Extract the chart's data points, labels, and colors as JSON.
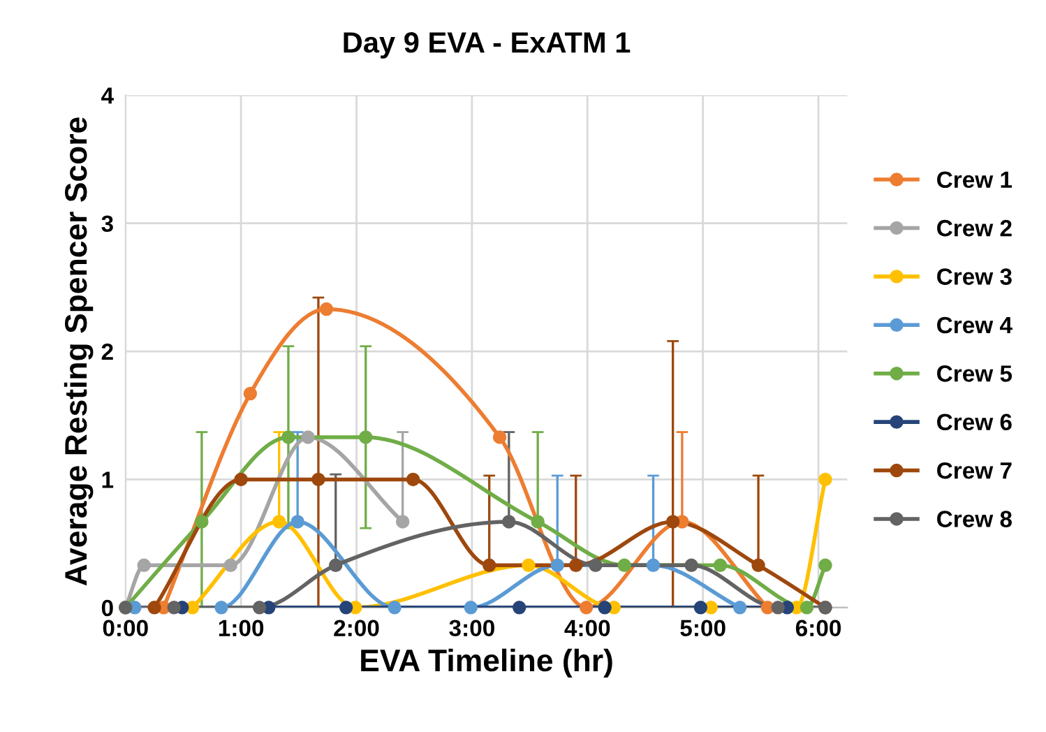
{
  "chart_data": {
    "type": "line",
    "title": "Day 9 EVA - ExATM 1",
    "xlabel": "EVA Timeline (hr)",
    "ylabel": "Average Resting Spencer Score",
    "xlim": [
      0,
      6.25
    ],
    "xticks": [
      {
        "value": 0,
        "label": "0:00"
      },
      {
        "value": 1,
        "label": "1:00"
      },
      {
        "value": 2,
        "label": "2:00"
      },
      {
        "value": 3,
        "label": "3:00"
      },
      {
        "value": 4,
        "label": "4:00"
      },
      {
        "value": 5,
        "label": "5:00"
      },
      {
        "value": 6,
        "label": "6:00"
      }
    ],
    "ylim": [
      0,
      4
    ],
    "yticks": [
      0,
      1,
      2,
      3,
      4
    ],
    "grid": true,
    "legend": "right",
    "marker": "circle",
    "line_style": "solid",
    "series": [
      {
        "name": "Crew 1",
        "color": "#ed7d31",
        "x": [
          0.33,
          1.08,
          1.74,
          3.24,
          3.99,
          4.82,
          5.56
        ],
        "values": [
          0,
          1.67,
          2.33,
          1.33,
          0,
          0.67,
          0
        ],
        "errors": [
          null,
          null,
          null,
          null,
          null,
          [
            0.67,
            1.37
          ],
          null
        ]
      },
      {
        "name": "Crew 2",
        "color": "#a5a5a5",
        "x": [
          0,
          0.16,
          0.91,
          1.58,
          2.4
        ],
        "values": [
          0,
          0.33,
          0.33,
          1.33,
          0.67
        ],
        "errors": [
          null,
          null,
          null,
          null,
          [
            0.67,
            1.37
          ]
        ]
      },
      {
        "name": "Crew 3",
        "color": "#ffc000",
        "x": [
          0.58,
          1.33,
          1.99,
          3.49,
          4.23,
          5.07,
          5.81,
          6.06
        ],
        "values": [
          0,
          0.67,
          0,
          0.33,
          0,
          0,
          0,
          1
        ],
        "errors": [
          null,
          [
            0.67,
            1.37
          ],
          null,
          null,
          null,
          null,
          null,
          null
        ]
      },
      {
        "name": "Crew 4",
        "color": "#5b9bd5",
        "x": [
          0.08,
          0.83,
          1.49,
          2.33,
          2.99,
          3.74,
          4.57,
          5.32
        ],
        "values": [
          0,
          0,
          0.67,
          0,
          0,
          0.33,
          0.33,
          0
        ],
        "errors": [
          null,
          null,
          [
            0.67,
            1.37
          ],
          null,
          null,
          [
            0.33,
            1.03
          ],
          [
            0.33,
            1.03
          ],
          null
        ]
      },
      {
        "name": "Crew 5",
        "color": "#70ad47",
        "x": [
          0,
          0.66,
          1.41,
          2.08,
          3.57,
          4.32,
          5.15,
          5.9,
          6.06
        ],
        "values": [
          0,
          0.67,
          1.33,
          1.33,
          0.67,
          0.33,
          0.33,
          0,
          0.33
        ],
        "errors": [
          null,
          [
            0,
            1.37
          ],
          0.71,
          0.71,
          [
            0.67,
            1.37
          ],
          null,
          null,
          null,
          null
        ]
      },
      {
        "name": "Crew 6",
        "color": "#264478",
        "x": [
          0.49,
          1.24,
          1.91,
          3.41,
          4.15,
          4.98,
          5.73
        ],
        "values": [
          0,
          0,
          0,
          0,
          0,
          0,
          0
        ]
      },
      {
        "name": "Crew 7",
        "color": "#9e480e",
        "x": [
          0.25,
          1.0,
          1.67,
          2.49,
          3.15,
          3.9,
          4.74,
          5.48,
          6.06
        ],
        "values": [
          0,
          1,
          1,
          1,
          0.33,
          0.33,
          0.67,
          0.33,
          0
        ],
        "errors": [
          null,
          null,
          [
            0,
            2.42
          ],
          null,
          [
            0.33,
            1.03
          ],
          [
            0.33,
            1.03
          ],
          [
            0,
            2.08
          ],
          [
            0.33,
            1.03
          ],
          null
        ]
      },
      {
        "name": "Crew 8",
        "color": "#636363",
        "x": [
          0,
          0.42,
          1.16,
          1.82,
          3.32,
          4.07,
          4.9,
          5.65,
          6.06
        ],
        "values": [
          0,
          0,
          0,
          0.33,
          0.67,
          0.33,
          0.33,
          0,
          0
        ],
        "errors": [
          null,
          null,
          null,
          [
            0.33,
            1.04
          ],
          [
            0.67,
            1.37
          ],
          null,
          null,
          null,
          null
        ]
      }
    ]
  }
}
